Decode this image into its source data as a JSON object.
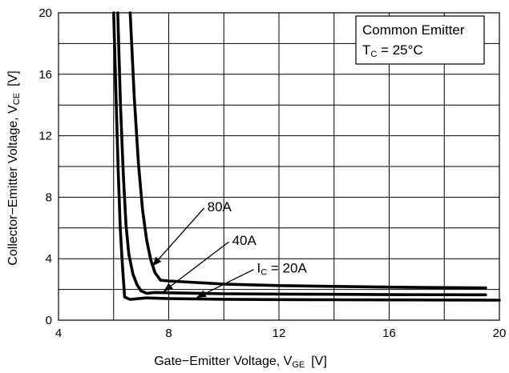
{
  "chart_data": {
    "type": "line",
    "xlabel": {
      "main": "Gate−Emitter Voltage, V",
      "sub": "GE",
      "unit": "[V]"
    },
    "ylabel": {
      "main": "Collector−Emitter Voltage, V",
      "sub": "CE",
      "unit": "[V]"
    },
    "xlim": [
      4,
      20
    ],
    "ylim": [
      0,
      20
    ],
    "x_ticks": [
      4,
      8,
      12,
      16,
      20
    ],
    "y_ticks": [
      0,
      4,
      8,
      12,
      16,
      20
    ],
    "x_grid": [
      4,
      6,
      8,
      10,
      12,
      14,
      16,
      18,
      20
    ],
    "y_grid": [
      0,
      2,
      4,
      6,
      8,
      10,
      12,
      14,
      16,
      18,
      20
    ],
    "grid": true,
    "legend": {
      "placement": "top-right",
      "line1": "Common Emitter",
      "line2_T": "T",
      "line2_sub": "C",
      "line2_rest": " = 25°C"
    },
    "series": [
      {
        "label": "80A",
        "x": [
          6.6,
          6.75,
          6.9,
          7.05,
          7.2,
          7.35,
          7.5,
          7.7,
          8.0,
          8.5,
          10,
          12,
          14,
          16,
          18,
          19.5
        ],
        "y": [
          20,
          14.5,
          10.2,
          7.2,
          5.2,
          3.9,
          3.1,
          2.6,
          2.55,
          2.5,
          2.35,
          2.25,
          2.2,
          2.15,
          2.12,
          2.1
        ]
      },
      {
        "label": "40A",
        "x": [
          6.15,
          6.25,
          6.35,
          6.45,
          6.55,
          6.7,
          6.85,
          7.0,
          7.2,
          7.5,
          8.0,
          10,
          12,
          14,
          16,
          19.5
        ],
        "y": [
          20,
          14.0,
          9.5,
          6.2,
          4.3,
          3.0,
          2.3,
          1.9,
          1.75,
          1.8,
          1.78,
          1.72,
          1.7,
          1.68,
          1.66,
          1.65
        ]
      },
      {
        "label": "IC = 20A",
        "x": [
          6.0,
          6.08,
          6.16,
          6.24,
          6.32,
          6.4,
          6.6,
          6.9,
          7.2,
          8,
          10,
          12,
          14,
          16,
          18,
          20
        ],
        "y": [
          20,
          15.0,
          10.0,
          6.0,
          3.5,
          1.5,
          1.35,
          1.4,
          1.45,
          1.4,
          1.36,
          1.34,
          1.33,
          1.32,
          1.31,
          1.3
        ]
      }
    ],
    "annotations": [
      {
        "text": "80A",
        "pre": "",
        "sub": "",
        "post": "",
        "x": 9.4,
        "y": 7.4,
        "target_x": 7.4,
        "target_y": 3.5
      },
      {
        "text": "40A",
        "pre": "",
        "sub": "",
        "post": "",
        "x": 10.3,
        "y": 5.2,
        "target_x": 7.8,
        "target_y": 1.85
      },
      {
        "text": "",
        "pre": "I",
        "sub": "C",
        "post": " = 20A",
        "x": 11.2,
        "y": 3.4,
        "target_x": 9.0,
        "target_y": 1.45
      }
    ]
  }
}
